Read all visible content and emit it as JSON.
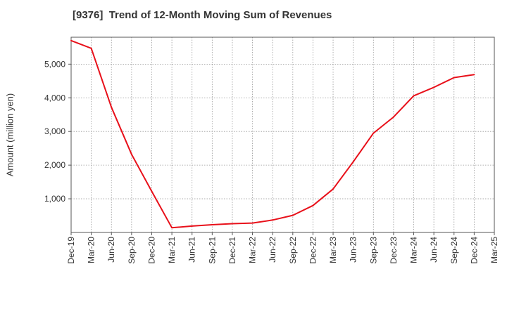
{
  "chart_data": {
    "type": "line",
    "title": "[9376]  Trend of 12-Month Moving Sum of Revenues",
    "xlabel": "",
    "ylabel": "Amount (million yen)",
    "categories": [
      "Dec-19",
      "Mar-20",
      "Jun-20",
      "Sep-20",
      "Dec-20",
      "Mar-21",
      "Jun-21",
      "Sep-21",
      "Dec-21",
      "Mar-22",
      "Jun-22",
      "Sep-22",
      "Dec-22",
      "Mar-23",
      "Jun-23",
      "Sep-23",
      "Dec-23",
      "Mar-24",
      "Jun-24",
      "Sep-24",
      "Dec-24",
      "Mar-25"
    ],
    "series": [
      {
        "name": "",
        "color": "#e8101a",
        "values": [
          5700,
          5470,
          3720,
          2320,
          1220,
          140,
          190,
          230,
          260,
          280,
          370,
          510,
          800,
          1290,
          2100,
          2950,
          3430,
          4060,
          4310,
          4600,
          4690,
          null
        ]
      }
    ],
    "ylim": [
      0,
      5800
    ],
    "yticks": [
      1000,
      2000,
      3000,
      4000,
      5000
    ],
    "ytick_labels": [
      "1,000",
      "2,000",
      "3,000",
      "4,000",
      "5,000"
    ],
    "grid": true,
    "legend": "none"
  }
}
